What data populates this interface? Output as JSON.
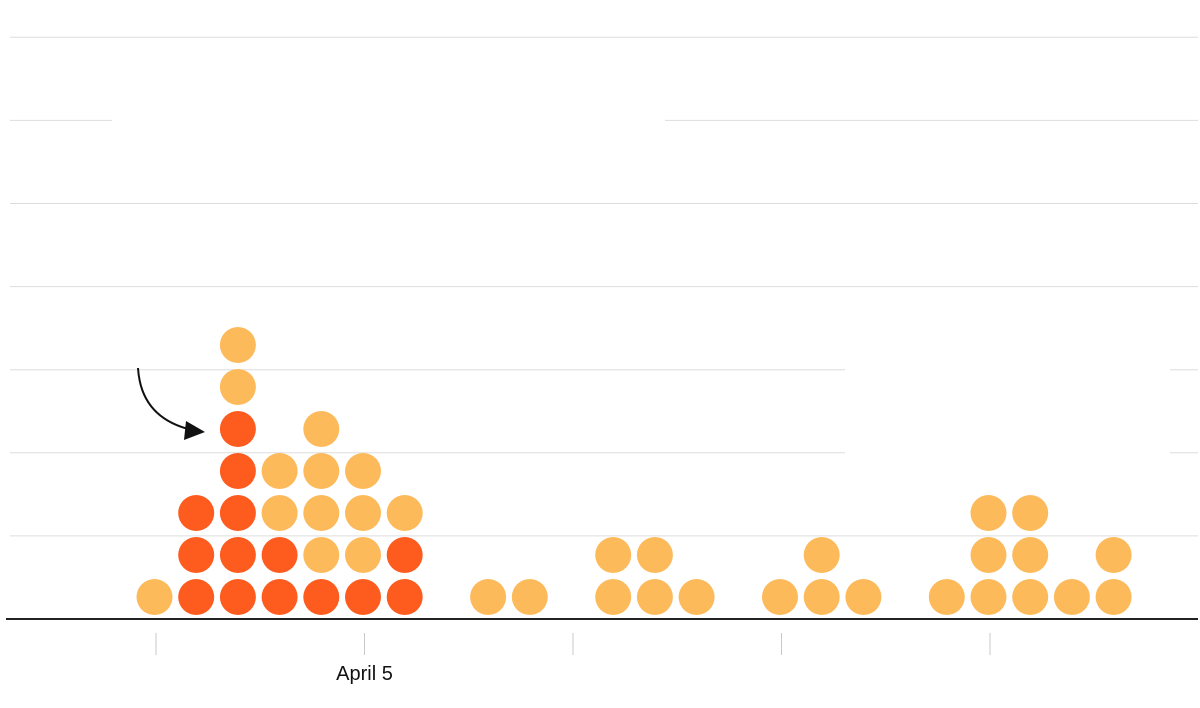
{
  "chart_data": {
    "type": "dot-stack",
    "title": "",
    "xlabel": "",
    "ylabel": "",
    "y_units": "count",
    "ylim": [
      0,
      14
    ],
    "grid": true,
    "colors": {
      "highlight": "#fe5b1e",
      "normal": "#fdba5b",
      "axis": "#222222",
      "grid": "#dddddd"
    },
    "x_ticks": [
      {
        "index": 0,
        "label": ""
      },
      {
        "index": 5,
        "label": "April 5"
      },
      {
        "index": 10,
        "label": ""
      },
      {
        "index": 15,
        "label": ""
      },
      {
        "index": 20,
        "label": ""
      }
    ],
    "columns": [
      {
        "index": 0,
        "stack": [
          "normal"
        ]
      },
      {
        "index": 1,
        "stack": [
          "highlight",
          "highlight",
          "highlight"
        ]
      },
      {
        "index": 2,
        "stack": [
          "highlight",
          "highlight",
          "highlight",
          "highlight",
          "highlight",
          "normal",
          "normal"
        ]
      },
      {
        "index": 3,
        "stack": [
          "highlight",
          "highlight",
          "normal",
          "normal"
        ]
      },
      {
        "index": 4,
        "stack": [
          "highlight",
          "normal",
          "normal",
          "normal",
          "normal"
        ]
      },
      {
        "index": 5,
        "stack": [
          "highlight",
          "normal",
          "normal",
          "normal"
        ]
      },
      {
        "index": 6,
        "stack": [
          "highlight",
          "highlight",
          "normal"
        ]
      },
      {
        "index": 8,
        "stack": [
          "normal"
        ]
      },
      {
        "index": 9,
        "stack": [
          "normal"
        ]
      },
      {
        "index": 11,
        "stack": [
          "normal",
          "normal"
        ]
      },
      {
        "index": 12,
        "stack": [
          "normal",
          "normal"
        ]
      },
      {
        "index": 13,
        "stack": [
          "normal"
        ]
      },
      {
        "index": 15,
        "stack": [
          "normal"
        ]
      },
      {
        "index": 16,
        "stack": [
          "normal",
          "normal"
        ]
      },
      {
        "index": 17,
        "stack": [
          "normal"
        ]
      },
      {
        "index": 19,
        "stack": [
          "normal"
        ]
      },
      {
        "index": 20,
        "stack": [
          "normal",
          "normal",
          "normal"
        ]
      },
      {
        "index": 21,
        "stack": [
          "normal",
          "normal",
          "normal"
        ]
      },
      {
        "index": 22,
        "stack": [
          "normal"
        ]
      },
      {
        "index": 23,
        "stack": [
          "normal",
          "normal"
        ]
      }
    ],
    "annotation": {
      "target_index": 2,
      "target_level": 5
    }
  }
}
